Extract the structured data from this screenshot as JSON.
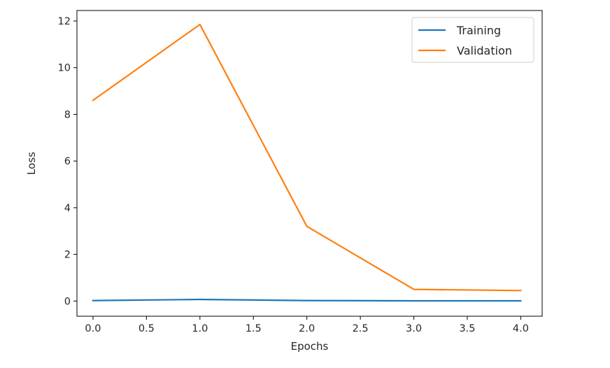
{
  "chart_data": {
    "type": "line",
    "title": "",
    "xlabel": "Epochs",
    "ylabel": "Loss",
    "xlim": [
      -0.15,
      4.2
    ],
    "ylim": [
      -0.65,
      12.45
    ],
    "xticks": [
      0.0,
      0.5,
      1.0,
      1.5,
      2.0,
      2.5,
      3.0,
      3.5,
      4.0
    ],
    "xtick_labels": [
      "0.0",
      "0.5",
      "1.0",
      "1.5",
      "2.0",
      "2.5",
      "3.0",
      "3.5",
      "4.0"
    ],
    "yticks": [
      0,
      2,
      4,
      6,
      8,
      10,
      12
    ],
    "ytick_labels": [
      "0",
      "2",
      "4",
      "6",
      "8",
      "10",
      "12"
    ],
    "x": [
      0,
      1,
      2,
      3,
      4
    ],
    "series": [
      {
        "name": "Training",
        "color": "#1f77b4",
        "values": [
          0.02,
          0.07,
          0.02,
          0.01,
          0.01
        ]
      },
      {
        "name": "Validation",
        "color": "#ff7f0e",
        "values": [
          8.6,
          11.85,
          3.2,
          0.5,
          0.45
        ]
      }
    ],
    "legend": "top-right",
    "grid": false
  }
}
